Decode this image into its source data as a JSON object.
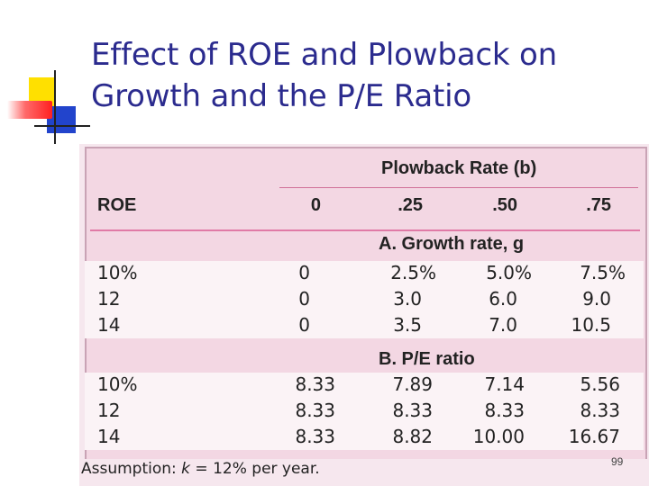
{
  "slide": {
    "title_line1": "Effect of ROE and Plowback on",
    "title_line2": "Growth and the P/E Ratio",
    "page_number": "99"
  },
  "table": {
    "group_header": "Plowback Rate (b)",
    "roe_header": "ROE",
    "plowback_rates": [
      "0",
      ".25",
      ".50",
      ".75"
    ],
    "section_a": {
      "label": "A. Growth rate, g",
      "rows": [
        {
          "roe": "10%",
          "values": [
            "0",
            "2.5%",
            "5.0%",
            "7.5%"
          ]
        },
        {
          "roe": "12",
          "values": [
            "0",
            "3.0",
            "6.0",
            "9.0"
          ]
        },
        {
          "roe": "14",
          "values": [
            "0",
            "3.5",
            "7.0",
            "10.5"
          ]
        }
      ]
    },
    "section_b": {
      "label": "B. P/E ratio",
      "rows": [
        {
          "roe": "10%",
          "values": [
            "8.33",
            "7.89",
            "7.14",
            "5.56"
          ]
        },
        {
          "roe": "12",
          "values": [
            "8.33",
            "8.33",
            "8.33",
            "8.33"
          ]
        },
        {
          "roe": "14",
          "values": [
            "8.33",
            "8.82",
            "10.00",
            "16.67"
          ]
        }
      ]
    },
    "assumption_prefix": "Assumption: ",
    "assumption_var": "k",
    "assumption_suffix": " = 12% per year."
  },
  "colors": {
    "title": "#2b2b8e",
    "panel": "#f3d7e3",
    "rule": "#e07aa6"
  }
}
